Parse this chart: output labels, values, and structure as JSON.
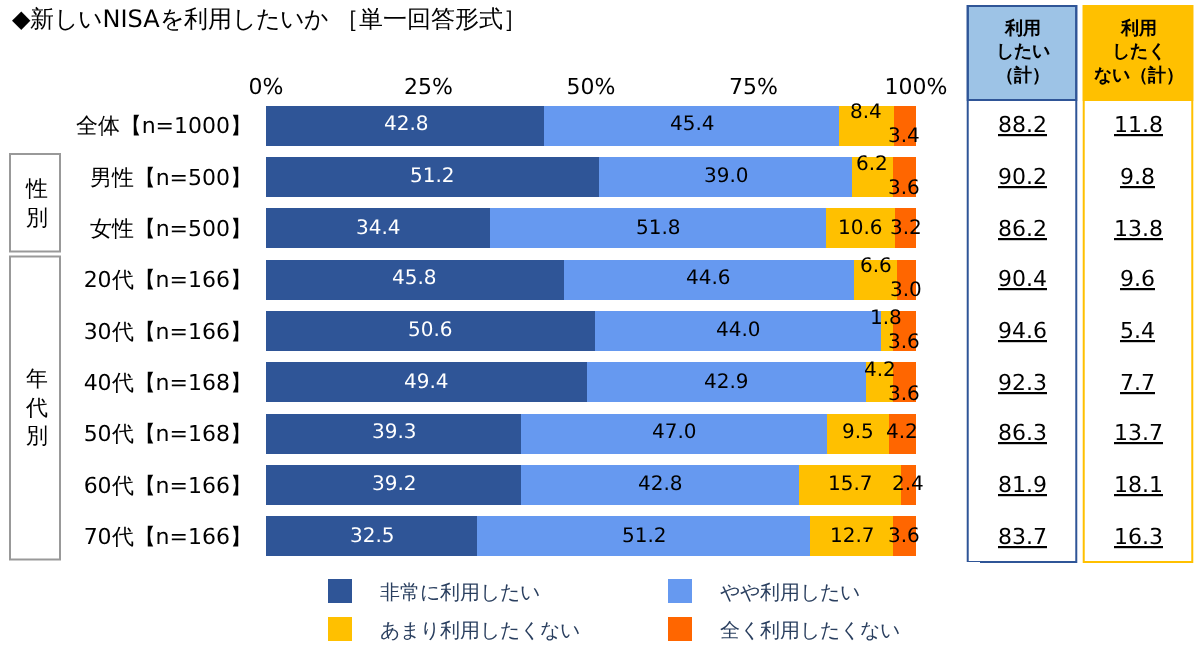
{
  "chart_data": {
    "type": "bar",
    "orientation": "horizontal",
    "stacked": true,
    "title": "◆新しいNISAを利用したいか ［単一回答形式］",
    "categories": [
      "全体【n=1000】",
      "男性【n=500】",
      "女性【n=500】",
      "20代【n=166】",
      "30代【n=166】",
      "40代【n=168】",
      "50代【n=168】",
      "60代【n=166】",
      "70代【n=166】"
    ],
    "series": [
      {
        "name": "非常に利用したい",
        "color": "#2f5597",
        "values": [
          42.8,
          51.2,
          34.4,
          45.8,
          50.6,
          49.4,
          39.3,
          39.2,
          32.5
        ],
        "value_labels": [
          "42.8",
          "51.2",
          "34.4",
          "45.8",
          "50.6",
          "49.4",
          "39.3",
          "39.2",
          "32.5"
        ]
      },
      {
        "name": "やや利用したい",
        "color": "#6699f0",
        "values": [
          45.4,
          39.0,
          51.8,
          44.6,
          44.0,
          42.9,
          47.0,
          42.8,
          51.2
        ],
        "value_labels": [
          "45.4",
          "39.0",
          "51.8",
          "44.6",
          "44.0",
          "42.9",
          "47.0",
          "42.8",
          "51.2"
        ]
      },
      {
        "name": "あまり利用したくない",
        "color": "#ffc000",
        "values": [
          8.4,
          6.2,
          10.6,
          6.6,
          1.8,
          4.2,
          9.5,
          15.7,
          12.7
        ],
        "value_labels": [
          "8.4",
          "6.2",
          "10.6",
          "6.6",
          "1.8",
          "4.2",
          "9.5",
          "15.7",
          "12.7"
        ]
      },
      {
        "name": "全く利用したくない",
        "color": "#ff6600",
        "values": [
          3.4,
          3.6,
          3.2,
          3.0,
          3.6,
          3.6,
          4.2,
          2.4,
          3.6
        ],
        "value_labels": [
          "3.4",
          "3.6",
          "3.2",
          "3.0",
          "3.6",
          "3.6",
          "4.2",
          "2.4",
          "3.6"
        ]
      }
    ],
    "xlim": [
      0,
      100
    ],
    "xticks": [
      {
        "value": 0,
        "label": "0%"
      },
      {
        "value": 25,
        "label": "25%"
      },
      {
        "value": 50,
        "label": "50%"
      },
      {
        "value": 75,
        "label": "75%"
      },
      {
        "value": 100,
        "label": "100%"
      }
    ],
    "legend": "bottom",
    "annotations": [
      "性別",
      "年代別",
      "利用したい（計）",
      "88.2",
      "90.2",
      "86.2",
      "90.4",
      "94.6",
      "92.3",
      "86.3",
      "81.9",
      "83.7",
      "利用したくない（計）",
      "11.8",
      "9.8",
      "13.8",
      "9.6",
      "5.4",
      "7.7",
      "13.7",
      "18.1",
      "16.3"
    ]
  }
}
